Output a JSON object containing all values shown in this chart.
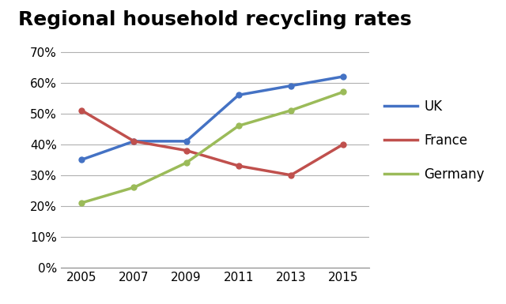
{
  "title": "Regional household recycling rates",
  "years": [
    2005,
    2007,
    2009,
    2011,
    2013,
    2015
  ],
  "series": [
    {
      "label": "UK",
      "color": "#4472C4",
      "values": [
        0.35,
        0.41,
        0.41,
        0.56,
        0.59,
        0.62
      ]
    },
    {
      "label": "France",
      "color": "#C0504D",
      "values": [
        0.51,
        0.41,
        0.38,
        0.33,
        0.3,
        0.4
      ]
    },
    {
      "label": "Germany",
      "color": "#9BBB59",
      "values": [
        0.21,
        0.26,
        0.34,
        0.46,
        0.51,
        0.57
      ]
    }
  ],
  "ylim": [
    0.0,
    0.75
  ],
  "yticks": [
    0.0,
    0.1,
    0.2,
    0.3,
    0.4,
    0.5,
    0.6,
    0.7
  ],
  "ytick_labels": [
    "0%",
    "10%",
    "20%",
    "30%",
    "40%",
    "50%",
    "60%",
    "70%"
  ],
  "background_color": "#ffffff",
  "grid_color": "#b0b0b0",
  "title_fontsize": 18,
  "legend_fontsize": 12,
  "tick_fontsize": 11,
  "line_width": 2.5,
  "marker": "o",
  "marker_size": 5
}
